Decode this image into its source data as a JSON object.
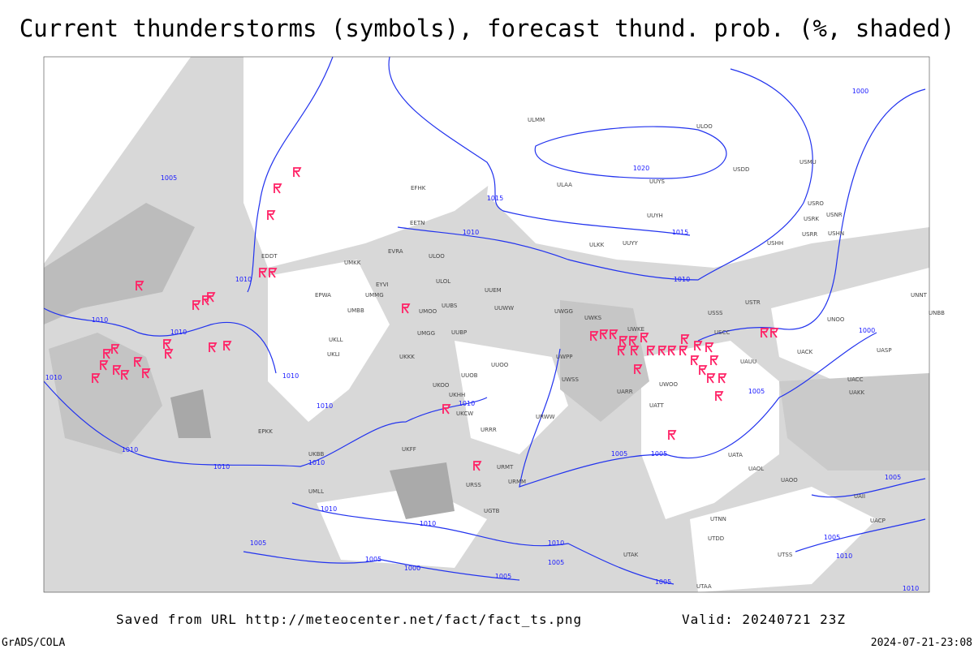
{
  "title": "Current thunderstorms (symbols), forecast thund. prob. (%, shaded)",
  "footer": {
    "source": "Saved from URL http://meteocenter.net/fact/fact_ts.png",
    "valid": "Valid: 20240721 23Z",
    "software": "GrADS/COLA",
    "timestamp": "2024-07-21-23:08"
  },
  "isobar_labels": [
    1005,
    1015,
    1020,
    1015,
    1010,
    1010,
    1010,
    1010,
    1010,
    1010,
    1010,
    1010,
    1010,
    1010,
    1010,
    1010,
    1005,
    1005,
    1000,
    1005,
    1000,
    1010,
    1010,
    1010,
    1005,
    1005,
    1005,
    1000,
    1005,
    1005,
    1005,
    1005,
    1010,
    1010
  ],
  "stations": [
    "ULMM",
    "ULOO",
    "USDD",
    "USMU",
    "ULAA",
    "UUYS",
    "USRO",
    "USRK",
    "USNR",
    "UUYH",
    "USRR",
    "USHN",
    "ULKK",
    "UUYY",
    "USHH",
    "EFHK",
    "EETN",
    "ULOO",
    "EVRA",
    "UMKK",
    "EDDT",
    "EPWA",
    "EYVI",
    "UMMG",
    "UMBB",
    "ULOL",
    "UUEM",
    "UUWW",
    "UUBS",
    "UWGG",
    "UWKS",
    "USSS",
    "USTR",
    "UNNT",
    "UNBB",
    "UMOO",
    "UMGG",
    "UUBP",
    "UWKE",
    "USCC",
    "UNOO",
    "UKLL",
    "UKLI",
    "UKKK",
    "UUOO",
    "UWPP",
    "UAUU",
    "UACK",
    "UASP",
    "UUOB",
    "UWSS",
    "UWOO",
    "UARR",
    "URWW",
    "UKHH",
    "UKCW",
    "URRR",
    "UATT",
    "UACC",
    "UAKK",
    "UATA",
    "UAOL",
    "UAOO",
    "URMT",
    "URMM",
    "URSS",
    "UGTB",
    "UTNN",
    "UTDD",
    "UTSS",
    "UTAK",
    "UTAA",
    "UKFF",
    "UKOO",
    "UKBB",
    "UMLL",
    "EPKK",
    "UAII",
    "UACP"
  ]
}
